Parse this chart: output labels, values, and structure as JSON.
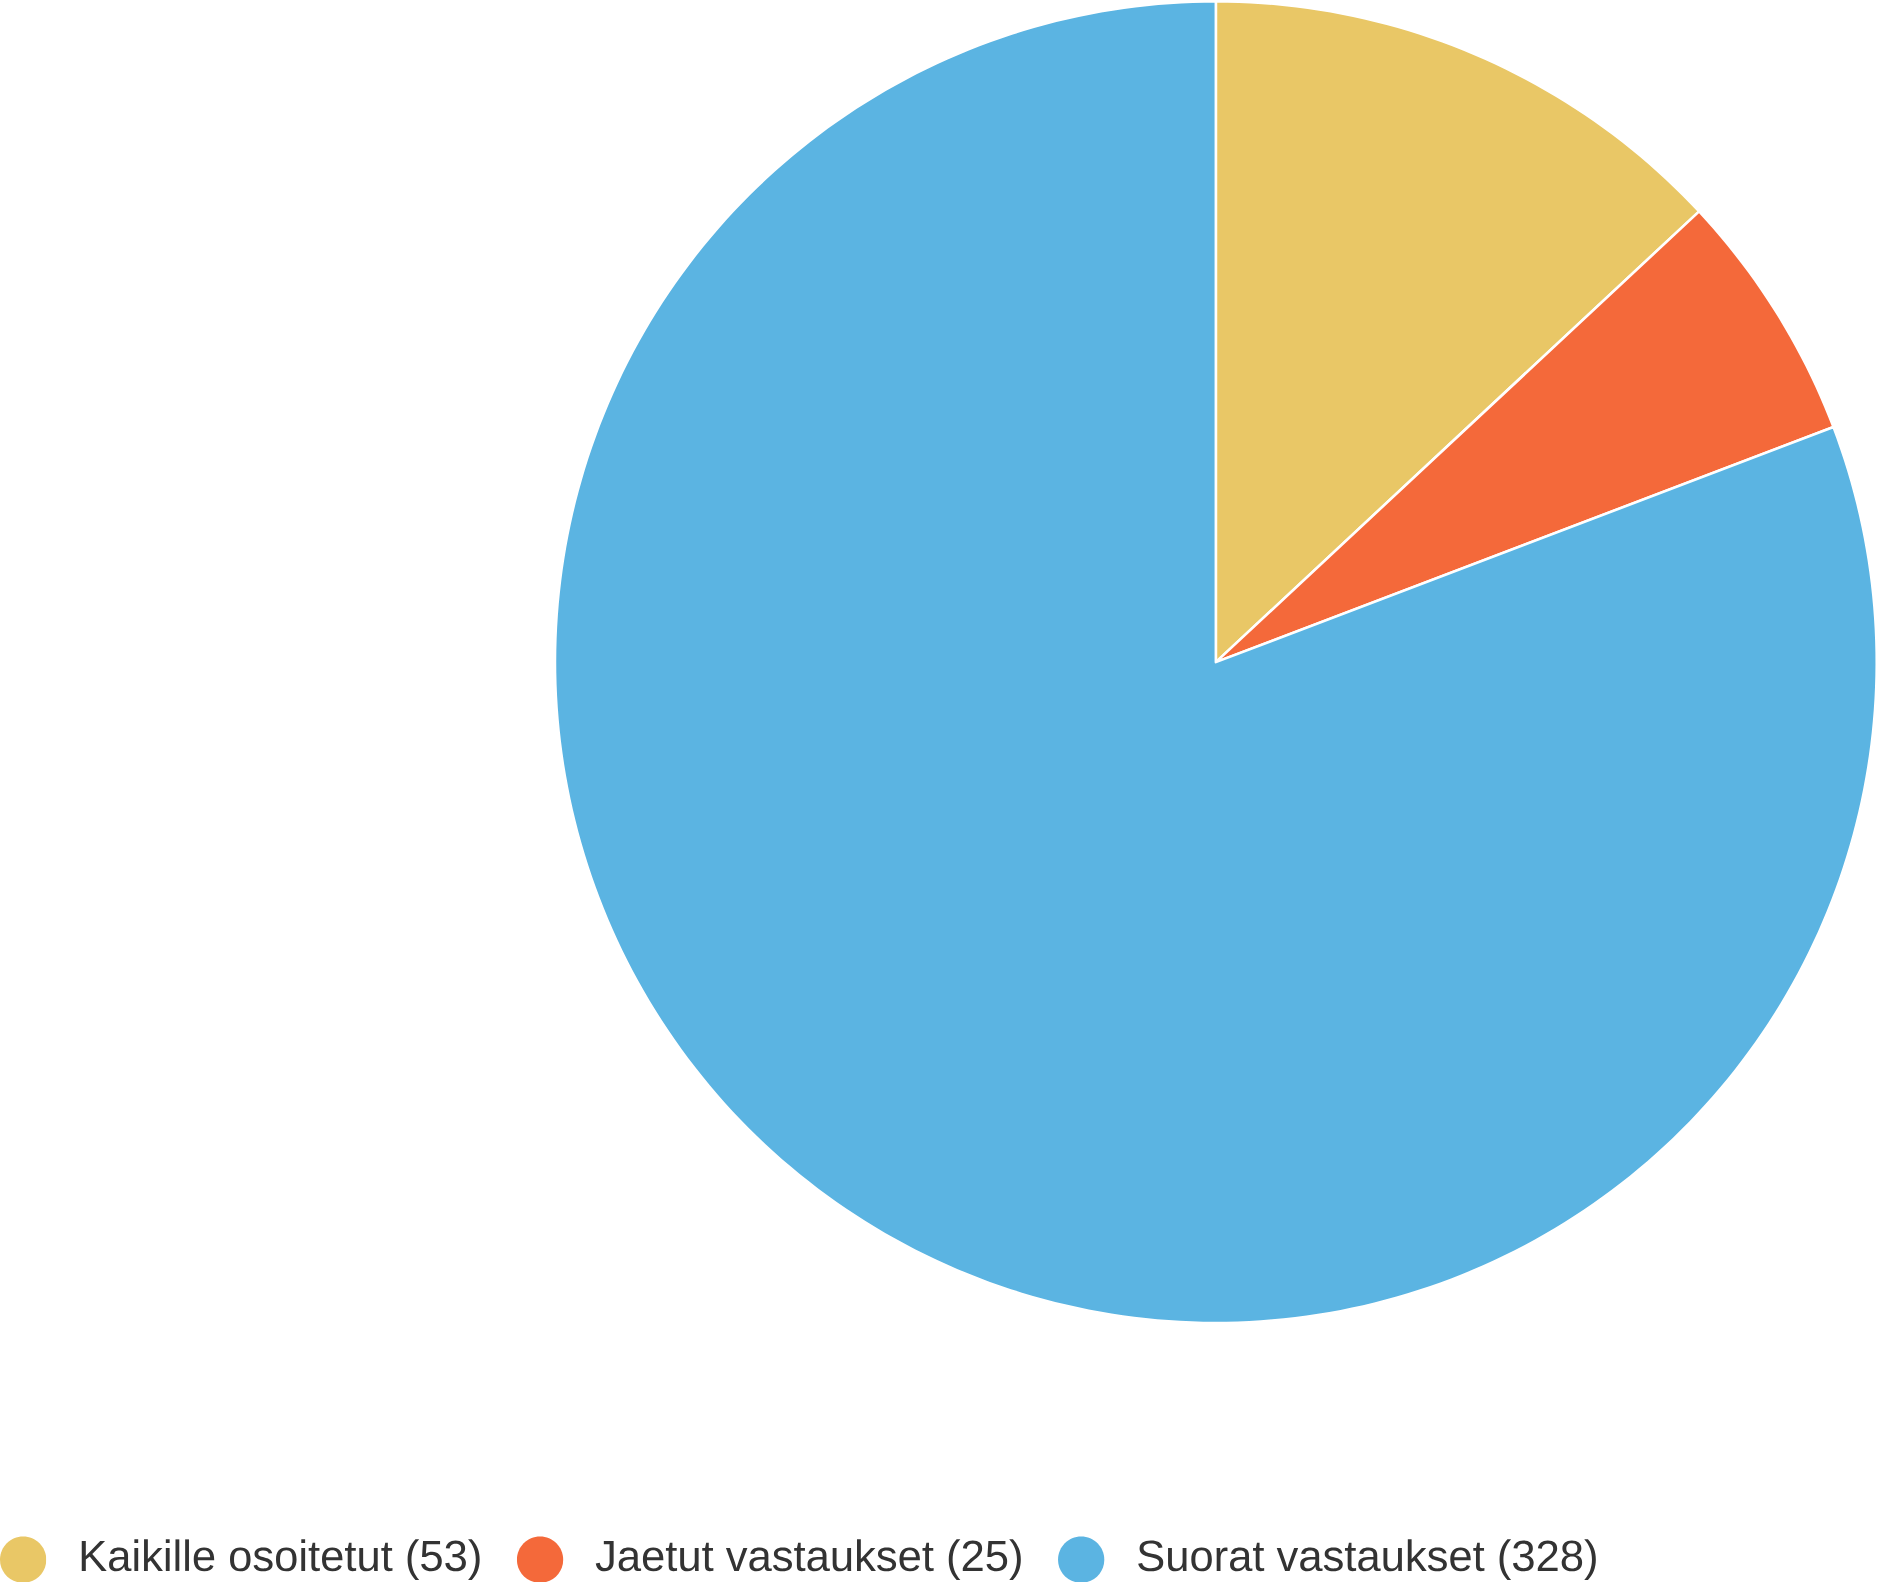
{
  "chart_data": {
    "type": "pie",
    "categories": [
      "Kaikille osoitetut (53)",
      "Jaetut vastaukset (25)",
      "Suorat vastaukset (328)"
    ],
    "values": [
      53,
      25,
      328
    ],
    "colors": [
      "#e9c766",
      "#f4693a",
      "#5bb4e2"
    ],
    "legend": "bottom"
  }
}
